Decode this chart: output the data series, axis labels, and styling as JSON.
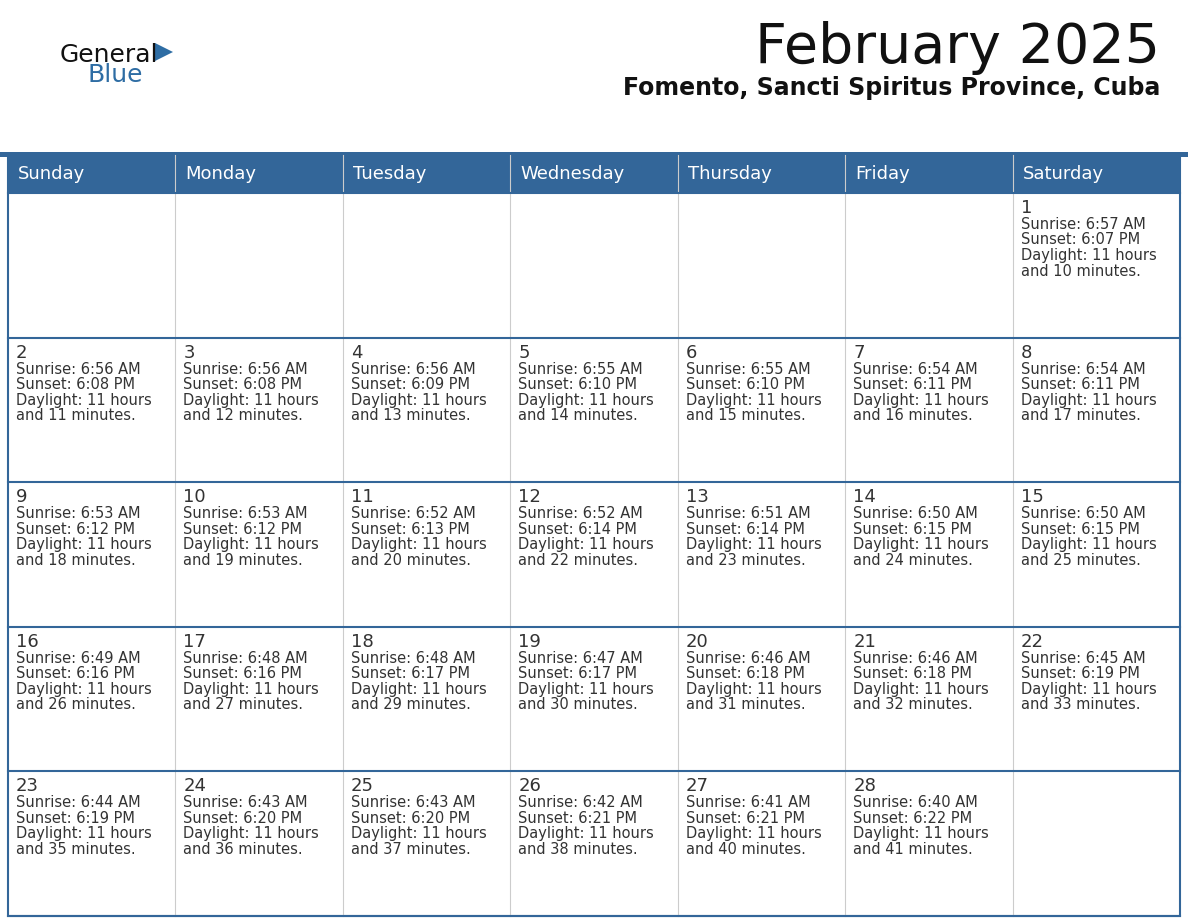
{
  "title": "February 2025",
  "subtitle": "Fomento, Sancti Spiritus Province, Cuba",
  "days_of_week": [
    "Sunday",
    "Monday",
    "Tuesday",
    "Wednesday",
    "Thursday",
    "Friday",
    "Saturday"
  ],
  "header_bg": "#336699",
  "header_text": "#FFFFFF",
  "cell_bg": "#FFFFFF",
  "row_divider_color": "#336699",
  "col_divider_color": "#CCCCCC",
  "day_num_color": "#333333",
  "cell_text_color": "#333333",
  "title_color": "#111111",
  "subtitle_color": "#111111",
  "logo_general_color": "#111111",
  "logo_blue_color": "#2E6DA4",
  "first_row_bg": "#F0F0F0",
  "calendar": [
    [
      null,
      null,
      null,
      null,
      null,
      null,
      1
    ],
    [
      2,
      3,
      4,
      5,
      6,
      7,
      8
    ],
    [
      9,
      10,
      11,
      12,
      13,
      14,
      15
    ],
    [
      16,
      17,
      18,
      19,
      20,
      21,
      22
    ],
    [
      23,
      24,
      25,
      26,
      27,
      28,
      null
    ]
  ],
  "cell_data": {
    "1": {
      "sunrise": "6:57 AM",
      "sunset": "6:07 PM",
      "daylight": "11 hours and 10 minutes."
    },
    "2": {
      "sunrise": "6:56 AM",
      "sunset": "6:08 PM",
      "daylight": "11 hours and 11 minutes."
    },
    "3": {
      "sunrise": "6:56 AM",
      "sunset": "6:08 PM",
      "daylight": "11 hours and 12 minutes."
    },
    "4": {
      "sunrise": "6:56 AM",
      "sunset": "6:09 PM",
      "daylight": "11 hours and 13 minutes."
    },
    "5": {
      "sunrise": "6:55 AM",
      "sunset": "6:10 PM",
      "daylight": "11 hours and 14 minutes."
    },
    "6": {
      "sunrise": "6:55 AM",
      "sunset": "6:10 PM",
      "daylight": "11 hours and 15 minutes."
    },
    "7": {
      "sunrise": "6:54 AM",
      "sunset": "6:11 PM",
      "daylight": "11 hours and 16 minutes."
    },
    "8": {
      "sunrise": "6:54 AM",
      "sunset": "6:11 PM",
      "daylight": "11 hours and 17 minutes."
    },
    "9": {
      "sunrise": "6:53 AM",
      "sunset": "6:12 PM",
      "daylight": "11 hours and 18 minutes."
    },
    "10": {
      "sunrise": "6:53 AM",
      "sunset": "6:12 PM",
      "daylight": "11 hours and 19 minutes."
    },
    "11": {
      "sunrise": "6:52 AM",
      "sunset": "6:13 PM",
      "daylight": "11 hours and 20 minutes."
    },
    "12": {
      "sunrise": "6:52 AM",
      "sunset": "6:14 PM",
      "daylight": "11 hours and 22 minutes."
    },
    "13": {
      "sunrise": "6:51 AM",
      "sunset": "6:14 PM",
      "daylight": "11 hours and 23 minutes."
    },
    "14": {
      "sunrise": "6:50 AM",
      "sunset": "6:15 PM",
      "daylight": "11 hours and 24 minutes."
    },
    "15": {
      "sunrise": "6:50 AM",
      "sunset": "6:15 PM",
      "daylight": "11 hours and 25 minutes."
    },
    "16": {
      "sunrise": "6:49 AM",
      "sunset": "6:16 PM",
      "daylight": "11 hours and 26 minutes."
    },
    "17": {
      "sunrise": "6:48 AM",
      "sunset": "6:16 PM",
      "daylight": "11 hours and 27 minutes."
    },
    "18": {
      "sunrise": "6:48 AM",
      "sunset": "6:17 PM",
      "daylight": "11 hours and 29 minutes."
    },
    "19": {
      "sunrise": "6:47 AM",
      "sunset": "6:17 PM",
      "daylight": "11 hours and 30 minutes."
    },
    "20": {
      "sunrise": "6:46 AM",
      "sunset": "6:18 PM",
      "daylight": "11 hours and 31 minutes."
    },
    "21": {
      "sunrise": "6:46 AM",
      "sunset": "6:18 PM",
      "daylight": "11 hours and 32 minutes."
    },
    "22": {
      "sunrise": "6:45 AM",
      "sunset": "6:19 PM",
      "daylight": "11 hours and 33 minutes."
    },
    "23": {
      "sunrise": "6:44 AM",
      "sunset": "6:19 PM",
      "daylight": "11 hours and 35 minutes."
    },
    "24": {
      "sunrise": "6:43 AM",
      "sunset": "6:20 PM",
      "daylight": "11 hours and 36 minutes."
    },
    "25": {
      "sunrise": "6:43 AM",
      "sunset": "6:20 PM",
      "daylight": "11 hours and 37 minutes."
    },
    "26": {
      "sunrise": "6:42 AM",
      "sunset": "6:21 PM",
      "daylight": "11 hours and 38 minutes."
    },
    "27": {
      "sunrise": "6:41 AM",
      "sunset": "6:21 PM",
      "daylight": "11 hours and 40 minutes."
    },
    "28": {
      "sunrise": "6:40 AM",
      "sunset": "6:22 PM",
      "daylight": "11 hours and 41 minutes."
    }
  }
}
